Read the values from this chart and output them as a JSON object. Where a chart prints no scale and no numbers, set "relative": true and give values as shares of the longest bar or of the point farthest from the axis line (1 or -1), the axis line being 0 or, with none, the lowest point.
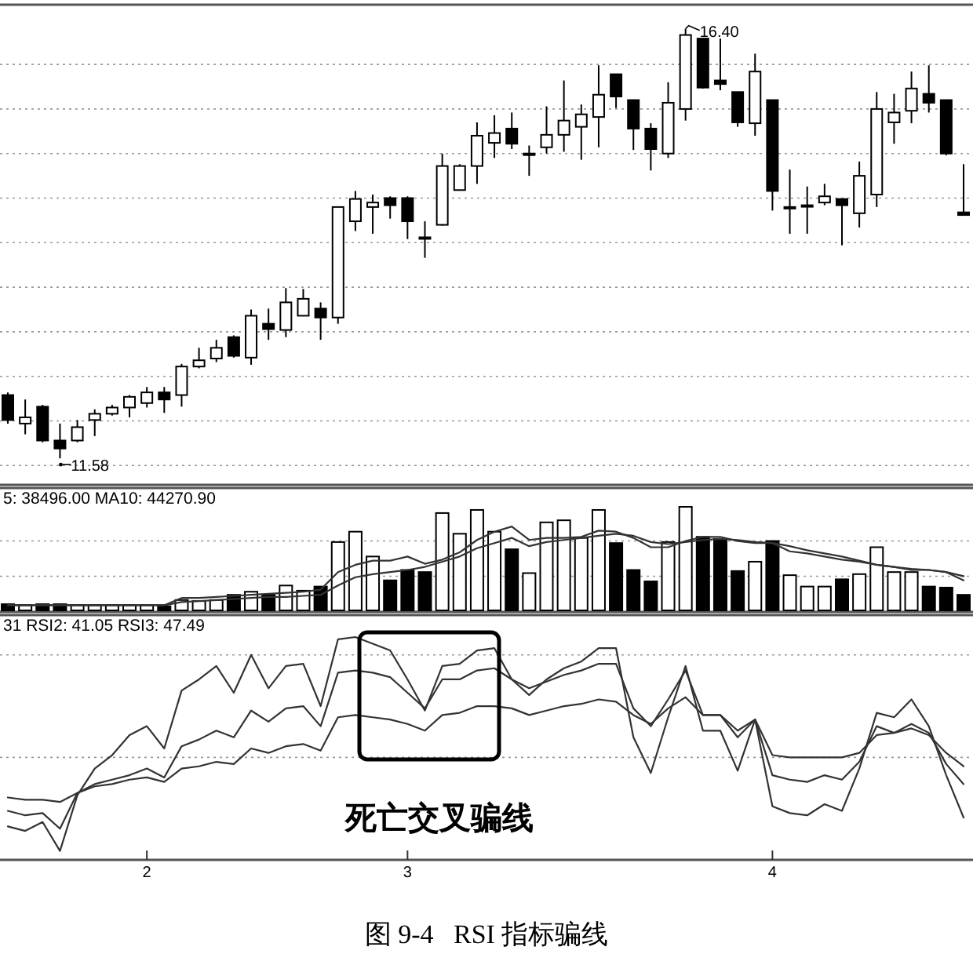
{
  "chart_data": [
    {
      "type": "candlestick",
      "categories": [
        null,
        null,
        null,
        null,
        null,
        null,
        null,
        null,
        null,
        null,
        null,
        null,
        null,
        null,
        null,
        null,
        null,
        null,
        null,
        null,
        null,
        null,
        null,
        null,
        null,
        null,
        null,
        null,
        null,
        null,
        null,
        null,
        null,
        null,
        null,
        null,
        null,
        null,
        null,
        null,
        null,
        null,
        null,
        null,
        null,
        null,
        null,
        null,
        null,
        null,
        null,
        null,
        null,
        null,
        null,
        null
      ],
      "ohlc": [
        [
          12.29,
          12.32,
          11.97,
          12.01
        ],
        [
          11.97,
          12.24,
          11.85,
          12.04
        ],
        [
          12.16,
          12.18,
          11.76,
          11.78
        ],
        [
          11.78,
          11.97,
          11.58,
          11.69
        ],
        [
          11.78,
          12.01,
          11.76,
          11.93
        ],
        [
          12.01,
          12.13,
          11.83,
          12.08
        ],
        [
          12.08,
          12.18,
          12.06,
          12.15
        ],
        [
          12.15,
          12.29,
          12.04,
          12.27
        ],
        [
          12.2,
          12.38,
          12.15,
          12.32
        ],
        [
          12.32,
          12.38,
          12.09,
          12.24
        ],
        [
          12.29,
          12.64,
          12.16,
          12.61
        ],
        [
          12.61,
          12.82,
          12.59,
          12.68
        ],
        [
          12.7,
          12.91,
          12.66,
          12.82
        ],
        [
          12.94,
          12.96,
          12.71,
          12.73
        ],
        [
          12.71,
          13.25,
          12.63,
          13.18
        ],
        [
          13.09,
          13.26,
          12.91,
          13.03
        ],
        [
          13.02,
          13.49,
          12.94,
          13.33
        ],
        [
          13.18,
          13.48,
          13.18,
          13.37
        ],
        [
          13.26,
          13.33,
          12.91,
          13.16
        ],
        [
          13.16,
          14.4,
          13.09,
          14.4
        ],
        [
          14.24,
          14.58,
          14.13,
          14.49
        ],
        [
          14.4,
          14.54,
          14.1,
          14.45
        ],
        [
          14.5,
          14.52,
          14.27,
          14.42
        ],
        [
          14.5,
          14.52,
          14.04,
          14.24
        ],
        [
          14.06,
          14.24,
          13.83,
          14.06
        ],
        [
          14.2,
          15.0,
          14.19,
          14.86
        ],
        [
          14.59,
          14.88,
          14.59,
          14.86
        ],
        [
          14.86,
          15.35,
          14.66,
          15.2
        ],
        [
          15.12,
          15.43,
          14.95,
          15.23
        ],
        [
          15.28,
          15.46,
          15.05,
          15.11
        ],
        [
          15.0,
          15.09,
          14.75,
          15.0
        ],
        [
          15.07,
          15.53,
          15.0,
          15.21
        ],
        [
          15.21,
          15.82,
          15.02,
          15.37
        ],
        [
          15.3,
          15.55,
          14.93,
          15.44
        ],
        [
          15.41,
          15.99,
          15.07,
          15.66
        ],
        [
          15.89,
          15.89,
          15.51,
          15.64
        ],
        [
          15.6,
          15.6,
          15.04,
          15.28
        ],
        [
          15.28,
          15.34,
          14.81,
          15.05
        ],
        [
          15.0,
          15.8,
          14.95,
          15.57
        ],
        [
          15.5,
          16.4,
          15.37,
          16.33
        ],
        [
          16.29,
          16.29,
          15.73,
          15.74
        ],
        [
          15.82,
          16.29,
          15.71,
          15.78
        ],
        [
          15.69,
          15.69,
          15.3,
          15.35
        ],
        [
          15.34,
          16.12,
          15.2,
          15.92
        ],
        [
          15.6,
          15.6,
          14.36,
          14.58
        ],
        [
          14.4,
          14.82,
          14.1,
          14.4
        ],
        [
          14.42,
          14.63,
          14.1,
          14.42
        ],
        [
          14.45,
          14.66,
          14.42,
          14.52
        ],
        [
          14.49,
          14.49,
          13.97,
          14.42
        ],
        [
          14.33,
          14.91,
          14.17,
          14.75
        ],
        [
          14.54,
          15.69,
          14.4,
          15.5
        ],
        [
          15.35,
          15.67,
          15.11,
          15.46
        ],
        [
          15.48,
          15.92,
          15.34,
          15.73
        ],
        [
          15.67,
          15.99,
          15.46,
          15.57
        ],
        [
          15.6,
          15.6,
          14.98,
          15.0
        ],
        [
          14.34,
          14.88,
          14.31,
          14.31
        ]
      ],
      "colors": [
        "#000000",
        "#ffffff",
        "#000000",
        "#000000",
        "#ffffff",
        "#ffffff",
        "#ffffff",
        "#ffffff",
        "#ffffff",
        "#000000",
        "#ffffff",
        "#ffffff",
        "#ffffff",
        "#000000",
        "#ffffff",
        "#000000",
        "#ffffff",
        "#ffffff",
        "#000000",
        "#ffffff",
        "#ffffff",
        "#ffffff",
        "#000000",
        "#000000",
        "#000000",
        "#ffffff",
        "#ffffff",
        "#ffffff",
        "#ffffff",
        "#000000",
        "#ffffff",
        "#ffffff",
        "#ffffff",
        "#ffffff",
        "#ffffff",
        "#000000",
        "#000000",
        "#000000",
        "#ffffff",
        "#ffffff",
        "#000000",
        "#000000",
        "#000000",
        "#ffffff",
        "#000000",
        "#ffffff",
        "#ffffff",
        "#ffffff",
        "#000000",
        "#ffffff",
        "#ffffff",
        "#ffffff",
        "#ffffff",
        "#000000",
        "#000000",
        "#000000"
      ],
      "ylim": [
        11.3,
        16.67
      ],
      "yticks": [
        {
          "value": 11.5,
          "label": null
        },
        {
          "value": 12,
          "label": null
        },
        {
          "value": 12.5,
          "label": null
        },
        {
          "value": 13,
          "label": null
        },
        {
          "value": 13.5,
          "label": null
        },
        {
          "value": 14,
          "label": null
        },
        {
          "value": 14.5,
          "label": null
        },
        {
          "value": 15,
          "label": null
        },
        {
          "value": 15.5,
          "label": null
        },
        {
          "value": 16,
          "label": null
        }
      ],
      "grid": "y",
      "tick_labels": false,
      "annotations": [
        "16.40",
        "11.58"
      ]
    },
    {
      "type": "bar",
      "relative": true,
      "tick_labels": false,
      "categories": [
        null,
        null,
        null,
        null,
        null,
        null,
        null,
        null,
        null,
        null,
        null,
        null,
        null,
        null,
        null,
        null,
        null,
        null,
        null,
        null,
        null,
        null,
        null,
        null,
        null,
        null,
        null,
        null,
        null,
        null,
        null,
        null,
        null,
        null,
        null,
        null,
        null,
        null,
        null,
        null,
        null,
        null,
        null,
        null,
        null,
        null,
        null,
        null,
        null,
        null,
        null,
        null,
        null,
        null,
        null,
        null
      ],
      "series": [
        {
          "type": "bar",
          "colors": [
            "#000000",
            "#ffffff",
            "#000000",
            "#000000",
            "#ffffff",
            "#ffffff",
            "#ffffff",
            "#ffffff",
            "#ffffff",
            "#000000",
            "#ffffff",
            "#ffffff",
            "#ffffff",
            "#000000",
            "#ffffff",
            "#000000",
            "#ffffff",
            "#ffffff",
            "#000000",
            "#ffffff",
            "#ffffff",
            "#ffffff",
            "#000000",
            "#000000",
            "#000000",
            "#ffffff",
            "#ffffff",
            "#ffffff",
            "#ffffff",
            "#000000",
            "#ffffff",
            "#ffffff",
            "#ffffff",
            "#ffffff",
            "#ffffff",
            "#000000",
            "#000000",
            "#000000",
            "#ffffff",
            "#ffffff",
            "#000000",
            "#000000",
            "#000000",
            "#ffffff",
            "#000000",
            "#ffffff",
            "#ffffff",
            "#ffffff",
            "#000000",
            "#ffffff",
            "#ffffff",
            "#ffffff",
            "#ffffff",
            "#000000",
            "#000000",
            "#000000"
          ],
          "values": [
            0.06,
            0.05,
            0.06,
            0.06,
            0.05,
            0.05,
            0.05,
            0.05,
            0.05,
            0.04,
            0.1,
            0.09,
            0.1,
            0.15,
            0.18,
            0.15,
            0.24,
            0.19,
            0.23,
            0.66,
            0.76,
            0.52,
            0.29,
            0.39,
            0.37,
            0.94,
            0.74,
            0.97,
            0.76,
            0.59,
            0.36,
            0.85,
            0.87,
            0.7,
            0.97,
            0.65,
            0.39,
            0.28,
            0.66,
            1.0,
            0.71,
            0.69,
            0.38,
            0.47,
            0.67,
            0.34,
            0.23,
            0.23,
            0.3,
            0.35,
            0.61,
            0.37,
            0.37,
            0.23,
            0.22,
            0.15
          ]
        },
        {
          "type": "line",
          "color": "#333333",
          "values": [
            0.05,
            0.05,
            0.05,
            0.05,
            0.05,
            0.05,
            0.05,
            0.05,
            0.05,
            0.05,
            0.12,
            0.12,
            0.13,
            0.14,
            0.15,
            0.16,
            0.17,
            0.18,
            0.2,
            0.37,
            0.44,
            0.48,
            0.48,
            0.52,
            0.45,
            0.49,
            0.56,
            0.68,
            0.76,
            0.81,
            0.68,
            0.7,
            0.7,
            0.71,
            0.77,
            0.76,
            0.7,
            0.61,
            0.61,
            0.67,
            0.71,
            0.71,
            0.67,
            0.65,
            0.65,
            0.57,
            0.55,
            0.52,
            0.49,
            0.47,
            0.44,
            0.42,
            0.39,
            0.39,
            0.37,
            0.29
          ]
        },
        {
          "type": "line",
          "color": "#333333",
          "values": [
            0.05,
            0.05,
            0.05,
            0.05,
            0.05,
            0.05,
            0.05,
            0.05,
            0.05,
            0.05,
            0.08,
            0.09,
            0.1,
            0.11,
            0.12,
            0.13,
            0.13,
            0.14,
            0.15,
            0.24,
            0.32,
            0.35,
            0.37,
            0.39,
            0.42,
            0.47,
            0.52,
            0.6,
            0.65,
            0.7,
            0.62,
            0.66,
            0.68,
            0.7,
            0.72,
            0.74,
            0.72,
            0.66,
            0.64,
            0.66,
            0.68,
            0.69,
            0.68,
            0.66,
            0.65,
            0.62,
            0.58,
            0.55,
            0.52,
            0.48,
            0.44,
            0.42,
            0.4,
            0.39,
            0.37,
            0.33
          ]
        }
      ],
      "ref_lines": [
        {
          "axis": "y",
          "value": 0.33,
          "line_style": "dotted",
          "color": "#999999"
        },
        {
          "axis": "y",
          "value": 0.67,
          "line_style": "dotted",
          "color": "#999999"
        }
      ],
      "annotations": [
        "5: 38496.00 MA10: 44270.90"
      ]
    },
    {
      "type": "line",
      "relative": true,
      "tick_labels": "x",
      "categories": [
        null,
        null,
        null,
        null,
        null,
        null,
        null,
        null,
        "2",
        null,
        null,
        null,
        null,
        null,
        null,
        null,
        null,
        null,
        null,
        null,
        null,
        null,
        null,
        "3",
        null,
        null,
        null,
        null,
        null,
        null,
        null,
        null,
        null,
        null,
        null,
        null,
        null,
        null,
        null,
        null,
        null,
        null,
        null,
        null,
        "4",
        null,
        null,
        null,
        null,
        null,
        null,
        null,
        null,
        null,
        null,
        null
      ],
      "series": [
        {
          "color": "#333333",
          "values": [
            0.15,
            0.13,
            0.17,
            0.04,
            0.29,
            0.41,
            0.47,
            0.56,
            0.6,
            0.5,
            0.76,
            0.81,
            0.87,
            0.75,
            0.92,
            0.77,
            0.87,
            0.88,
            0.69,
            0.99,
            1.0,
            0.97,
            0.94,
            0.81,
            0.67,
            0.87,
            0.88,
            0.94,
            0.95,
            0.81,
            0.74,
            0.81,
            0.86,
            0.89,
            0.95,
            0.95,
            0.55,
            0.39,
            0.64,
            0.87,
            0.58,
            0.58,
            0.4,
            0.63,
            0.24,
            0.21,
            0.2,
            0.25,
            0.22,
            0.41,
            0.66,
            0.64,
            0.72,
            0.6,
            0.38,
            0.19
          ]
        },
        {
          "color": "#333333",
          "values": [
            0.22,
            0.2,
            0.21,
            0.14,
            0.3,
            0.34,
            0.36,
            0.38,
            0.41,
            0.37,
            0.51,
            0.54,
            0.58,
            0.55,
            0.67,
            0.62,
            0.68,
            0.69,
            0.6,
            0.84,
            0.85,
            0.84,
            0.82,
            0.75,
            0.68,
            0.81,
            0.81,
            0.85,
            0.86,
            0.81,
            0.77,
            0.8,
            0.83,
            0.85,
            0.88,
            0.88,
            0.68,
            0.6,
            0.72,
            0.85,
            0.65,
            0.65,
            0.55,
            0.63,
            0.38,
            0.36,
            0.35,
            0.38,
            0.36,
            0.44,
            0.6,
            0.57,
            0.61,
            0.57,
            0.43,
            0.34
          ]
        },
        {
          "color": "#333333",
          "values": [
            0.28,
            0.27,
            0.27,
            0.26,
            0.3,
            0.33,
            0.34,
            0.36,
            0.37,
            0.35,
            0.41,
            0.42,
            0.44,
            0.43,
            0.5,
            0.48,
            0.51,
            0.52,
            0.49,
            0.64,
            0.65,
            0.64,
            0.63,
            0.61,
            0.58,
            0.65,
            0.66,
            0.69,
            0.69,
            0.68,
            0.65,
            0.67,
            0.69,
            0.7,
            0.72,
            0.71,
            0.65,
            0.61,
            0.68,
            0.73,
            0.65,
            0.65,
            0.58,
            0.63,
            0.47,
            0.46,
            0.46,
            0.46,
            0.46,
            0.48,
            0.56,
            0.57,
            0.59,
            0.56,
            0.48,
            0.42
          ]
        }
      ],
      "ref_lines": [
        {
          "axis": "y",
          "value": 0.46,
          "line_style": "dotted",
          "color": "#999999"
        },
        {
          "axis": "y",
          "value": 0.92,
          "line_style": "dotted",
          "color": "#999999"
        }
      ],
      "annotations": [
        "31 RSI2: 41.05 RSI3: 47.49",
        "死亡交叉骗线",
        "图 9-4   RSI 指标骗线"
      ]
    }
  ]
}
